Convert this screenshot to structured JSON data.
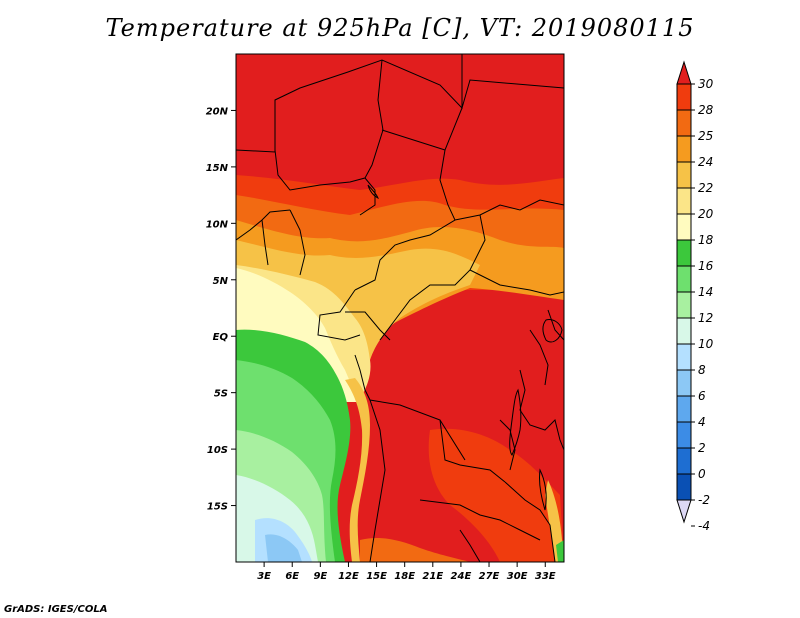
{
  "title": "Temperature at 925hPa [C], VT: 2019080115",
  "credit": "GrADS: IGES/COLA",
  "lat_ticks": [
    "20N",
    "15N",
    "10N",
    "5N",
    "EQ",
    "5S",
    "10S",
    "15S"
  ],
  "lat_values": [
    20,
    15,
    10,
    5,
    0,
    -5,
    -10,
    -15
  ],
  "lon_ticks": [
    "3E",
    "6E",
    "9E",
    "12E",
    "15E",
    "18E",
    "21E",
    "24E",
    "27E",
    "30E",
    "33E"
  ],
  "lon_values": [
    3,
    6,
    9,
    12,
    15,
    18,
    21,
    24,
    27,
    30,
    33
  ],
  "map_extent": {
    "lon": [
      0,
      35
    ],
    "lat": [
      -20,
      25
    ]
  },
  "colorbar": {
    "labels": [
      "30",
      "28",
      "25",
      "24",
      "22",
      "20",
      "18",
      "16",
      "14",
      "12",
      "10",
      "8",
      "6",
      "4",
      "2",
      "0",
      "-2",
      "-4"
    ],
    "colors": [
      "#e11e1e",
      "#f03c0e",
      "#f26a12",
      "#f59b1f",
      "#f6c247",
      "#fbe588",
      "#fffbbf",
      "#3cc83c",
      "#6ee06e",
      "#a8f0a0",
      "#d8f8e8",
      "#b4e0ff",
      "#8cc8f5",
      "#5ea8ee",
      "#3c8ce6",
      "#1e6ed2",
      "#0a50b4",
      "#0a1e78"
    ]
  }
}
